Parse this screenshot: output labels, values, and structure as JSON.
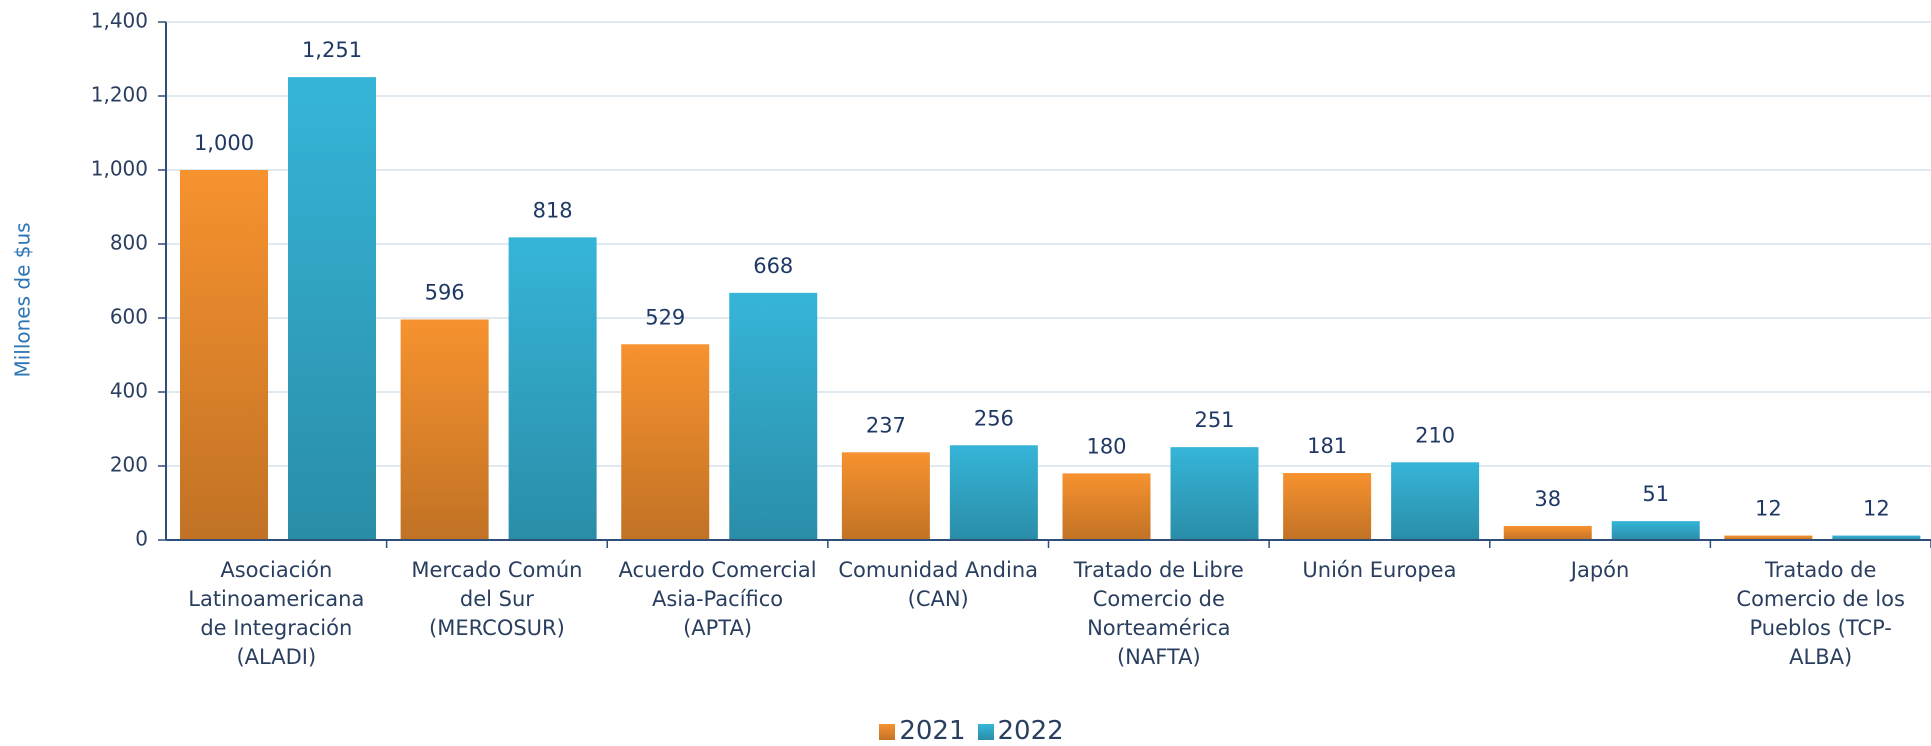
{
  "chart_data": {
    "type": "bar",
    "y_label": "Millones de $us",
    "categories": [
      "Asociación Latinoamericana de Integración (ALADI)",
      "Mercado Común del Sur (MERCOSUR)",
      "Acuerdo Comercial Asia-Pacífico (APTA)",
      "Comunidad Andina (CAN)",
      "Tratado de Libre Comercio de Norteamérica (NAFTA)",
      "Unión Europea",
      "Japón",
      "Tratado de Comercio de los Pueblos (TCP-ALBA)"
    ],
    "series": [
      {
        "name": "2021",
        "color": "#f7922f",
        "values": [
          1000,
          596,
          529,
          237,
          180,
          181,
          38,
          12
        ],
        "value_labels": [
          "1,000",
          "596",
          "529",
          "237",
          "180",
          "181",
          "38",
          "12"
        ]
      },
      {
        "name": "2022",
        "color": "#36b5d8",
        "values": [
          1251,
          818,
          668,
          256,
          251,
          210,
          51,
          12
        ],
        "value_labels": [
          "1,251",
          "818",
          "668",
          "256",
          "251",
          "210",
          "51",
          "12"
        ]
      }
    ],
    "ylim": [
      0,
      1400
    ],
    "yticks": [
      0,
      200,
      400,
      600,
      800,
      {
        "value": 1000,
        "label": "1,000"
      },
      {
        "value": 1200,
        "label": "1,200"
      },
      {
        "value": 1400,
        "label": "1,400"
      }
    ],
    "grid": true,
    "legend": "bottom"
  }
}
